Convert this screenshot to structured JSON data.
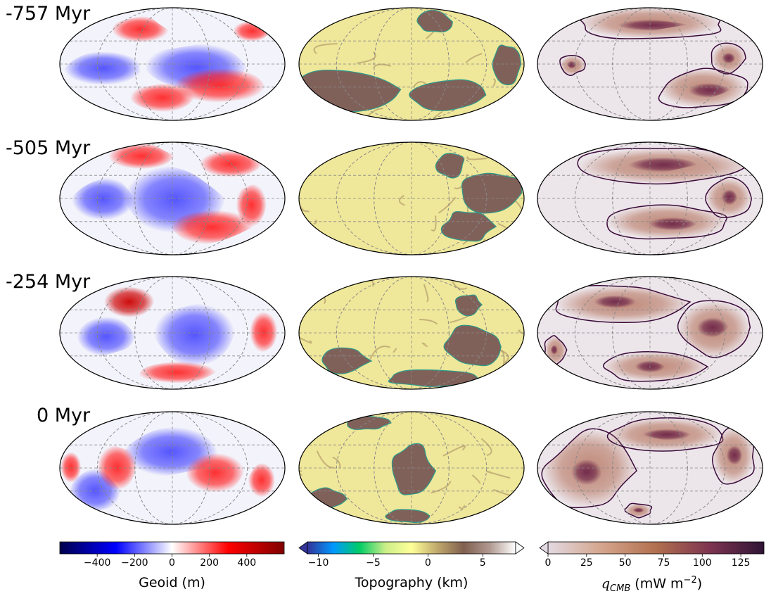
{
  "chart_data": {
    "type": "heatmap",
    "projection": "mollweide",
    "grid": true,
    "rows": [
      {
        "label": "-757 Myr"
      },
      {
        "label": "-505 Myr"
      },
      {
        "label": "-254 Myr"
      },
      {
        "label": "0 Myr"
      }
    ],
    "columns": [
      {
        "name": "geoid",
        "colorbar_label": "Geoid (m)",
        "cmap": "seismic",
        "vmin": -600,
        "vmax": 600,
        "ticks": [
          -400,
          -200,
          0,
          200,
          400
        ],
        "tick_labels": [
          "−400",
          "−200",
          "0",
          "200",
          "400"
        ],
        "extend": "neither",
        "colors": [
          "#00004d",
          "#0000ff",
          "#ffffff",
          "#ff0000",
          "#800000"
        ]
      },
      {
        "name": "topography",
        "colorbar_label": "Topography (km)",
        "cmap": "terrain",
        "vmin": -11,
        "vmax": 8,
        "ticks": [
          -10,
          -5,
          0,
          5
        ],
        "tick_labels": [
          "−10",
          "−5",
          "0",
          "5"
        ],
        "extend": "both",
        "colors": [
          "#333399",
          "#0099ff",
          "#00cc66",
          "#ccee88",
          "#ffff99",
          "#bfa86b",
          "#806050",
          "#b09890",
          "#ffffff"
        ]
      },
      {
        "name": "q_cmb",
        "colorbar_label": "q",
        "colorbar_label_sub": "CMB",
        "colorbar_label_units": " (mW m",
        "colorbar_label_sup": "−2",
        "colorbar_label_end": ")",
        "cmap": "twilight_shifted",
        "vmin": 0,
        "vmax": 140,
        "ticks": [
          0,
          25,
          50,
          75,
          100,
          125
        ],
        "tick_labels": [
          "0",
          "25",
          "50",
          "75",
          "100",
          "125"
        ],
        "extend": "min",
        "colors": [
          "#e2d9e2",
          "#d4a58c",
          "#b2704f",
          "#7d3450",
          "#2f1436"
        ]
      }
    ]
  }
}
